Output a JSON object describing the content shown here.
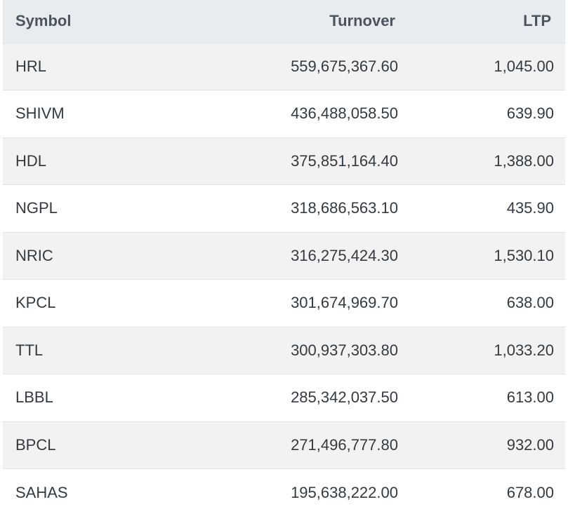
{
  "table": {
    "headers": {
      "symbol": "Symbol",
      "turnover": "Turnover",
      "ltp": "LTP"
    },
    "rows": [
      {
        "symbol": "HRL",
        "turnover": "559,675,367.60",
        "ltp": "1,045.00"
      },
      {
        "symbol": "SHIVM",
        "turnover": "436,488,058.50",
        "ltp": "639.90"
      },
      {
        "symbol": "HDL",
        "turnover": "375,851,164.40",
        "ltp": "1,388.00"
      },
      {
        "symbol": "NGPL",
        "turnover": "318,686,563.10",
        "ltp": "435.90"
      },
      {
        "symbol": "NRIC",
        "turnover": "316,275,424.30",
        "ltp": "1,530.10"
      },
      {
        "symbol": "KPCL",
        "turnover": "301,674,969.70",
        "ltp": "638.00"
      },
      {
        "symbol": "TTL",
        "turnover": "300,937,303.80",
        "ltp": "1,033.20"
      },
      {
        "symbol": "LBBL",
        "turnover": "285,342,037.50",
        "ltp": "613.00"
      },
      {
        "symbol": "BPCL",
        "turnover": "271,496,777.80",
        "ltp": "932.00"
      },
      {
        "symbol": "SAHAS",
        "turnover": "195,638,222.00",
        "ltp": "678.00"
      }
    ]
  }
}
